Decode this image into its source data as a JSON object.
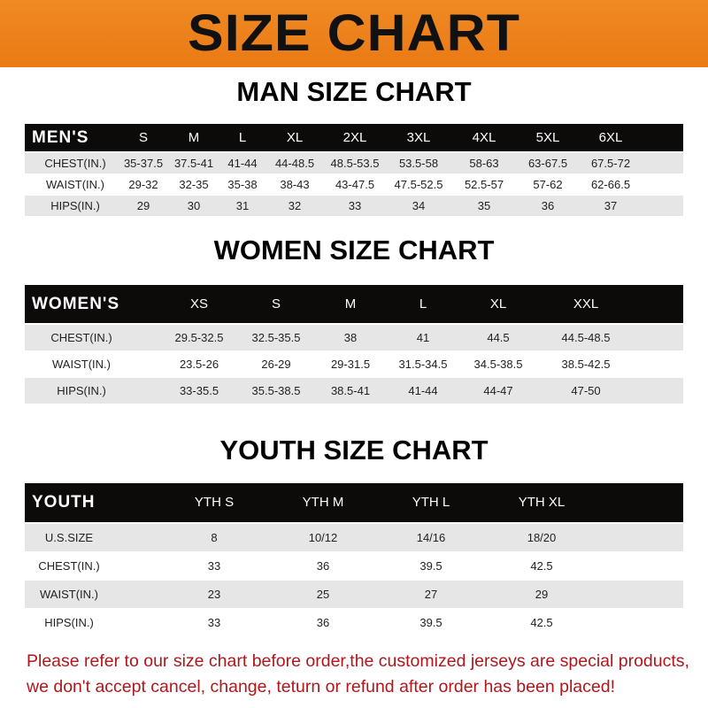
{
  "banner_title": "SIZE CHART",
  "colors": {
    "banner": "#ee8420",
    "header_row": "#0d0a0a",
    "note_text": "#b0171c"
  },
  "men": {
    "title": "MAN SIZE CHART",
    "header": [
      "MEN'S",
      "S",
      "M",
      "L",
      "XL",
      "2XL",
      "3XL",
      "4XL",
      "5XL",
      "6XL"
    ],
    "rows": [
      [
        "CHEST(IN.)",
        "35-37.5",
        "37.5-41",
        "41-44",
        "44-48.5",
        "48.5-53.5",
        "53.5-58",
        "58-63",
        "63-67.5",
        "67.5-72"
      ],
      [
        "WAIST(IN.)",
        "29-32",
        "32-35",
        "35-38",
        "38-43",
        "43-47.5",
        "47.5-52.5",
        "52.5-57",
        "57-62",
        "62-66.5"
      ],
      [
        "HIPS(IN.)",
        "29",
        "30",
        "31",
        "32",
        "33",
        "34",
        "35",
        "36",
        "37"
      ]
    ]
  },
  "women": {
    "title": "WOMEN SIZE CHART",
    "header": [
      "WOMEN'S",
      "XS",
      "S",
      "M",
      "L",
      "XL",
      "XXL"
    ],
    "rows": [
      [
        "CHEST(IN.)",
        "29.5-32.5",
        "32.5-35.5",
        "38",
        "41",
        "44.5",
        "44.5-48.5"
      ],
      [
        "WAIST(IN.)",
        "23.5-26",
        "26-29",
        "29-31.5",
        "31.5-34.5",
        "34.5-38.5",
        "38.5-42.5"
      ],
      [
        "HIPS(IN.)",
        "33-35.5",
        "35.5-38.5",
        "38.5-41",
        "41-44",
        "44-47",
        "47-50"
      ]
    ]
  },
  "youth": {
    "title": "YOUTH SIZE CHART",
    "header": [
      "YOUTH",
      "YTH S",
      "YTH M",
      "YTH L",
      "YTH XL"
    ],
    "rows": [
      [
        "U.S.SIZE",
        "8",
        "10/12",
        "14/16",
        "18/20"
      ],
      [
        "CHEST(IN.)",
        "33",
        "36",
        "39.5",
        "42.5"
      ],
      [
        "WAIST(IN.)",
        "23",
        "25",
        "27",
        "29"
      ],
      [
        "HIPS(IN.)",
        "33",
        "36",
        "39.5",
        "42.5"
      ]
    ]
  },
  "note": {
    "line1": "Please refer to our size chart before order,the customized jerseys are special products,",
    "line2": "we don't accept cancel, change, teturn or refund after order has been placed!"
  }
}
